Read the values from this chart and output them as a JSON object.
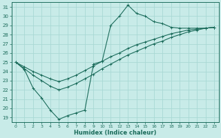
{
  "xlabel": "Humidex (Indice chaleur)",
  "bg_color": "#c8ebe8",
  "line_color": "#1a6b5a",
  "grid_color": "#a8d8d4",
  "xlim": [
    -0.5,
    23.5
  ],
  "ylim": [
    18.5,
    31.5
  ],
  "xticks": [
    0,
    1,
    2,
    3,
    4,
    5,
    6,
    7,
    8,
    9,
    10,
    11,
    12,
    13,
    14,
    15,
    16,
    17,
    18,
    19,
    20,
    21,
    22,
    23
  ],
  "yticks": [
    19,
    20,
    21,
    22,
    23,
    24,
    25,
    26,
    27,
    28,
    29,
    30,
    31
  ],
  "line1_x": [
    0,
    1,
    2,
    3,
    4,
    5,
    6,
    7,
    8,
    9,
    10,
    11,
    12,
    13,
    14,
    15,
    16,
    17,
    18,
    19,
    20,
    21,
    22,
    23
  ],
  "line1_y": [
    25.0,
    24.2,
    22.2,
    21.1,
    19.8,
    18.8,
    19.2,
    19.5,
    19.8,
    24.8,
    25.1,
    29.0,
    30.0,
    31.2,
    30.3,
    30.0,
    29.4,
    29.2,
    28.8,
    28.7,
    28.7,
    28.7,
    28.7,
    28.8
  ],
  "line2_x": [
    0,
    1,
    2,
    3,
    4,
    5,
    6,
    7,
    8,
    9,
    10,
    11,
    12,
    13,
    14,
    15,
    16,
    17,
    18,
    19,
    20,
    21,
    22,
    23
  ],
  "line2_y": [
    25.0,
    24.5,
    24.0,
    23.6,
    23.2,
    22.9,
    23.2,
    23.6,
    24.1,
    24.6,
    25.1,
    25.6,
    26.0,
    26.5,
    26.9,
    27.2,
    27.5,
    27.8,
    28.1,
    28.3,
    28.5,
    28.6,
    28.7,
    28.8
  ],
  "line3_x": [
    0,
    1,
    2,
    3,
    4,
    5,
    6,
    7,
    8,
    9,
    10,
    11,
    12,
    13,
    14,
    15,
    16,
    17,
    18,
    19,
    20,
    21,
    22,
    23
  ],
  "line3_y": [
    25.0,
    24.3,
    23.6,
    23.0,
    22.4,
    22.0,
    22.3,
    22.7,
    23.2,
    23.7,
    24.3,
    24.8,
    25.3,
    25.8,
    26.2,
    26.6,
    27.0,
    27.3,
    27.7,
    28.0,
    28.3,
    28.5,
    28.7,
    28.8
  ]
}
